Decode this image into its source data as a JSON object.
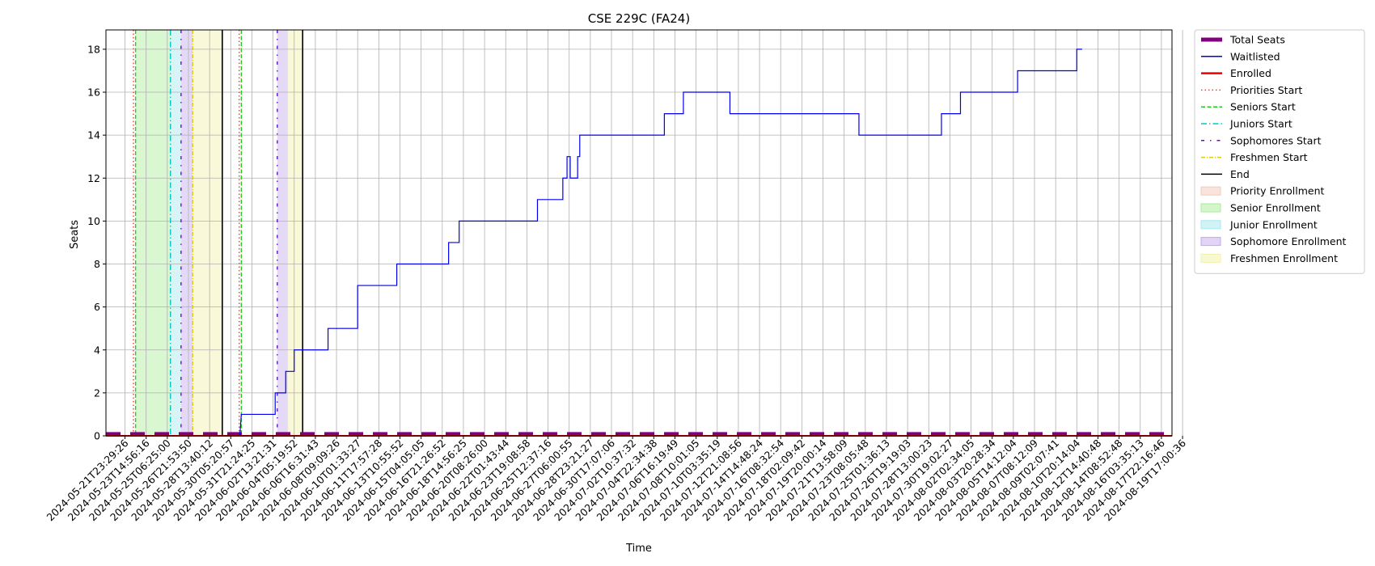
{
  "chart_data": {
    "type": "line",
    "title": "CSE 229C (FA24)",
    "xlabel": "Time",
    "ylabel": "Seats",
    "ylim": [
      0,
      18.9
    ],
    "yticks": [
      0,
      2,
      4,
      6,
      8,
      10,
      12,
      14,
      16,
      18
    ],
    "grid": true,
    "legend_position": "outside-right",
    "x_tick_labels": [
      "2024-05-21T23:29:26",
      "2024-05-23T14:56:16",
      "2024-05-25T06:25:00",
      "2024-05-26T21:53:50",
      "2024-05-28T13:40:12",
      "2024-05-30T05:20:57",
      "2024-05-31T21:24:25",
      "2024-06-02T13:21:31",
      "2024-06-04T05:19:52",
      "2024-06-06T16:31:43",
      "2024-06-08T09:09:26",
      "2024-06-10T01:33:27",
      "2024-06-11T17:57:28",
      "2024-06-13T10:55:52",
      "2024-06-15T04:05:05",
      "2024-06-16T21:26:52",
      "2024-06-18T14:56:25",
      "2024-06-20T08:26:00",
      "2024-06-22T01:43:44",
      "2024-06-23T19:08:58",
      "2024-06-25T12:37:16",
      "2024-06-27T06:00:55",
      "2024-06-28T23:21:27",
      "2024-06-30T17:07:06",
      "2024-07-02T10:37:32",
      "2024-07-04T22:34:38",
      "2024-07-06T16:19:49",
      "2024-07-08T10:01:05",
      "2024-07-10T03:35:19",
      "2024-07-12T21:08:56",
      "2024-07-14T14:48:24",
      "2024-07-16T08:32:54",
      "2024-07-18T02:09:42",
      "2024-07-19T20:00:14",
      "2024-07-21T13:58:09",
      "2024-07-23T08:05:48",
      "2024-07-25T01:36:13",
      "2024-07-26T19:19:03",
      "2024-07-28T13:00:23",
      "2024-07-30T19:02:27",
      "2024-08-02T02:34:05",
      "2024-08-03T20:28:34",
      "2024-08-05T14:12:04",
      "2024-08-07T08:12:09",
      "2024-08-09T02:07:41",
      "2024-08-10T20:14:04",
      "2024-08-12T14:40:48",
      "2024-08-14T08:52:48",
      "2024-08-16T03:35:13",
      "2024-08-17T22:16:46",
      "2024-08-19T17:00:36"
    ],
    "x_index_range": [
      -0.9,
      49.5
    ],
    "series": [
      {
        "name": "Total Seats",
        "color": "#800080",
        "style": "thick-dashed",
        "width": 4,
        "points": [
          [
            -0.9,
            0.1
          ],
          [
            49.5,
            0.1
          ]
        ]
      },
      {
        "name": "Waitlisted",
        "color": "#0000ee",
        "style": "step",
        "width": 1.2,
        "points": [
          [
            5.43,
            0
          ],
          [
            5.5,
            1
          ],
          [
            7.1,
            1
          ],
          [
            7.1,
            2
          ],
          [
            7.6,
            2
          ],
          [
            7.6,
            3
          ],
          [
            8.0,
            3
          ],
          [
            8.0,
            4
          ],
          [
            9.6,
            4
          ],
          [
            9.6,
            5
          ],
          [
            11.0,
            5
          ],
          [
            11.0,
            7
          ],
          [
            12.85,
            7
          ],
          [
            12.85,
            8
          ],
          [
            15.3,
            8
          ],
          [
            15.3,
            9
          ],
          [
            15.8,
            9
          ],
          [
            15.8,
            10
          ],
          [
            19.5,
            10
          ],
          [
            19.5,
            11
          ],
          [
            20.7,
            11
          ],
          [
            20.7,
            12
          ],
          [
            20.9,
            12
          ],
          [
            20.9,
            13
          ],
          [
            21.05,
            13
          ],
          [
            21.05,
            12
          ],
          [
            21.4,
            12
          ],
          [
            21.4,
            13
          ],
          [
            21.5,
            13
          ],
          [
            21.5,
            14
          ],
          [
            25.5,
            14
          ],
          [
            25.5,
            15
          ],
          [
            26.4,
            15
          ],
          [
            26.4,
            16
          ],
          [
            28.6,
            16
          ],
          [
            28.6,
            15
          ],
          [
            34.7,
            15
          ],
          [
            34.7,
            14
          ],
          [
            38.6,
            14
          ],
          [
            38.6,
            15
          ],
          [
            39.5,
            15
          ],
          [
            39.5,
            16
          ],
          [
            42.2,
            16
          ],
          [
            42.2,
            17
          ],
          [
            45.0,
            17
          ],
          [
            45.0,
            18
          ],
          [
            45.25,
            18
          ]
        ]
      },
      {
        "name": "Enrolled",
        "color": "#ee0000",
        "style": "solid",
        "width": 2,
        "points": [
          [
            -0.9,
            0
          ],
          [
            49.5,
            0
          ]
        ]
      }
    ],
    "vertical_lines": [
      {
        "name": "Priorities Start",
        "color": "#ff3b1f",
        "style": "dotted",
        "x": 0.4
      },
      {
        "name": "Seniors Start",
        "color": "#22cc22",
        "style": "dashed",
        "x": 0.5
      },
      {
        "name": "Juniors Start",
        "color": "#00c8cc",
        "style": "dashdot",
        "x": 2.15
      },
      {
        "name": "Sophomores Start",
        "color": "#6a0dcc",
        "style": "loose-dashdot",
        "x": 2.65
      },
      {
        "name": "Freshmen Start",
        "color": "#ddcc00",
        "style": "dashdot-fine",
        "x": 3.2
      },
      {
        "name": "End",
        "color": "#000000",
        "style": "solid",
        "x": 4.6
      },
      {
        "name": "Priorities Start",
        "color": "#ff3b1f",
        "style": "dotted",
        "x": 5.4
      },
      {
        "name": "Seniors Start",
        "color": "#22cc22",
        "style": "dashed",
        "x": 5.5
      },
      {
        "name": "Sophomores Start",
        "color": "#6a0dcc",
        "style": "loose-dashdot",
        "x": 7.2
      },
      {
        "name": "End",
        "color": "#000000",
        "style": "solid",
        "x": 8.4
      }
    ],
    "regions": [
      {
        "name": "Senior Enrollment",
        "color": "#aaee99",
        "from": 0.5,
        "to": 2.15
      },
      {
        "name": "Junior Enrollment",
        "color": "#a6e8ee",
        "from": 2.15,
        "to": 2.65
      },
      {
        "name": "Sophomore Enrollment",
        "color": "#c4aaee",
        "from": 2.65,
        "to": 3.2
      },
      {
        "name": "Freshmen Enrollment",
        "color": "#f2f2aa",
        "from": 3.2,
        "to": 4.6
      },
      {
        "name": "Sophomore Enrollment",
        "color": "#c4aaee",
        "from": 7.2,
        "to": 7.7
      },
      {
        "name": "Freshmen Enrollment",
        "color": "#f2f2aa",
        "from": 7.7,
        "to": 8.4
      }
    ],
    "legend": [
      {
        "label": "Total Seats",
        "kind": "line",
        "color": "#800080",
        "style": "thick"
      },
      {
        "label": "Waitlisted",
        "kind": "line",
        "color": "#0000ee",
        "style": "solid"
      },
      {
        "label": "Enrolled",
        "kind": "line",
        "color": "#ee0000",
        "style": "solid-bold"
      },
      {
        "label": "Priorities Start",
        "kind": "line",
        "color": "#ff3b1f",
        "style": "dotted"
      },
      {
        "label": "Seniors Start",
        "kind": "line",
        "color": "#22cc22",
        "style": "dashed"
      },
      {
        "label": "Juniors Start",
        "kind": "line",
        "color": "#00c8cc",
        "style": "dashdot"
      },
      {
        "label": "Sophomores Start",
        "kind": "line",
        "color": "#6a0dcc",
        "style": "loose-dashdot"
      },
      {
        "label": "Freshmen Start",
        "kind": "line",
        "color": "#ddcc00",
        "style": "dashdot-fine"
      },
      {
        "label": "End",
        "kind": "line",
        "color": "#000000",
        "style": "solid"
      },
      {
        "label": "Priority Enrollment",
        "kind": "patch",
        "color": "#f5c8b8"
      },
      {
        "label": "Senior Enrollment",
        "kind": "patch",
        "color": "#aaee99"
      },
      {
        "label": "Junior Enrollment",
        "kind": "patch",
        "color": "#a6e8ee"
      },
      {
        "label": "Sophomore Enrollment",
        "kind": "patch",
        "color": "#c4aaee"
      },
      {
        "label": "Freshmen Enrollment",
        "kind": "patch",
        "color": "#f2f2aa"
      }
    ]
  }
}
